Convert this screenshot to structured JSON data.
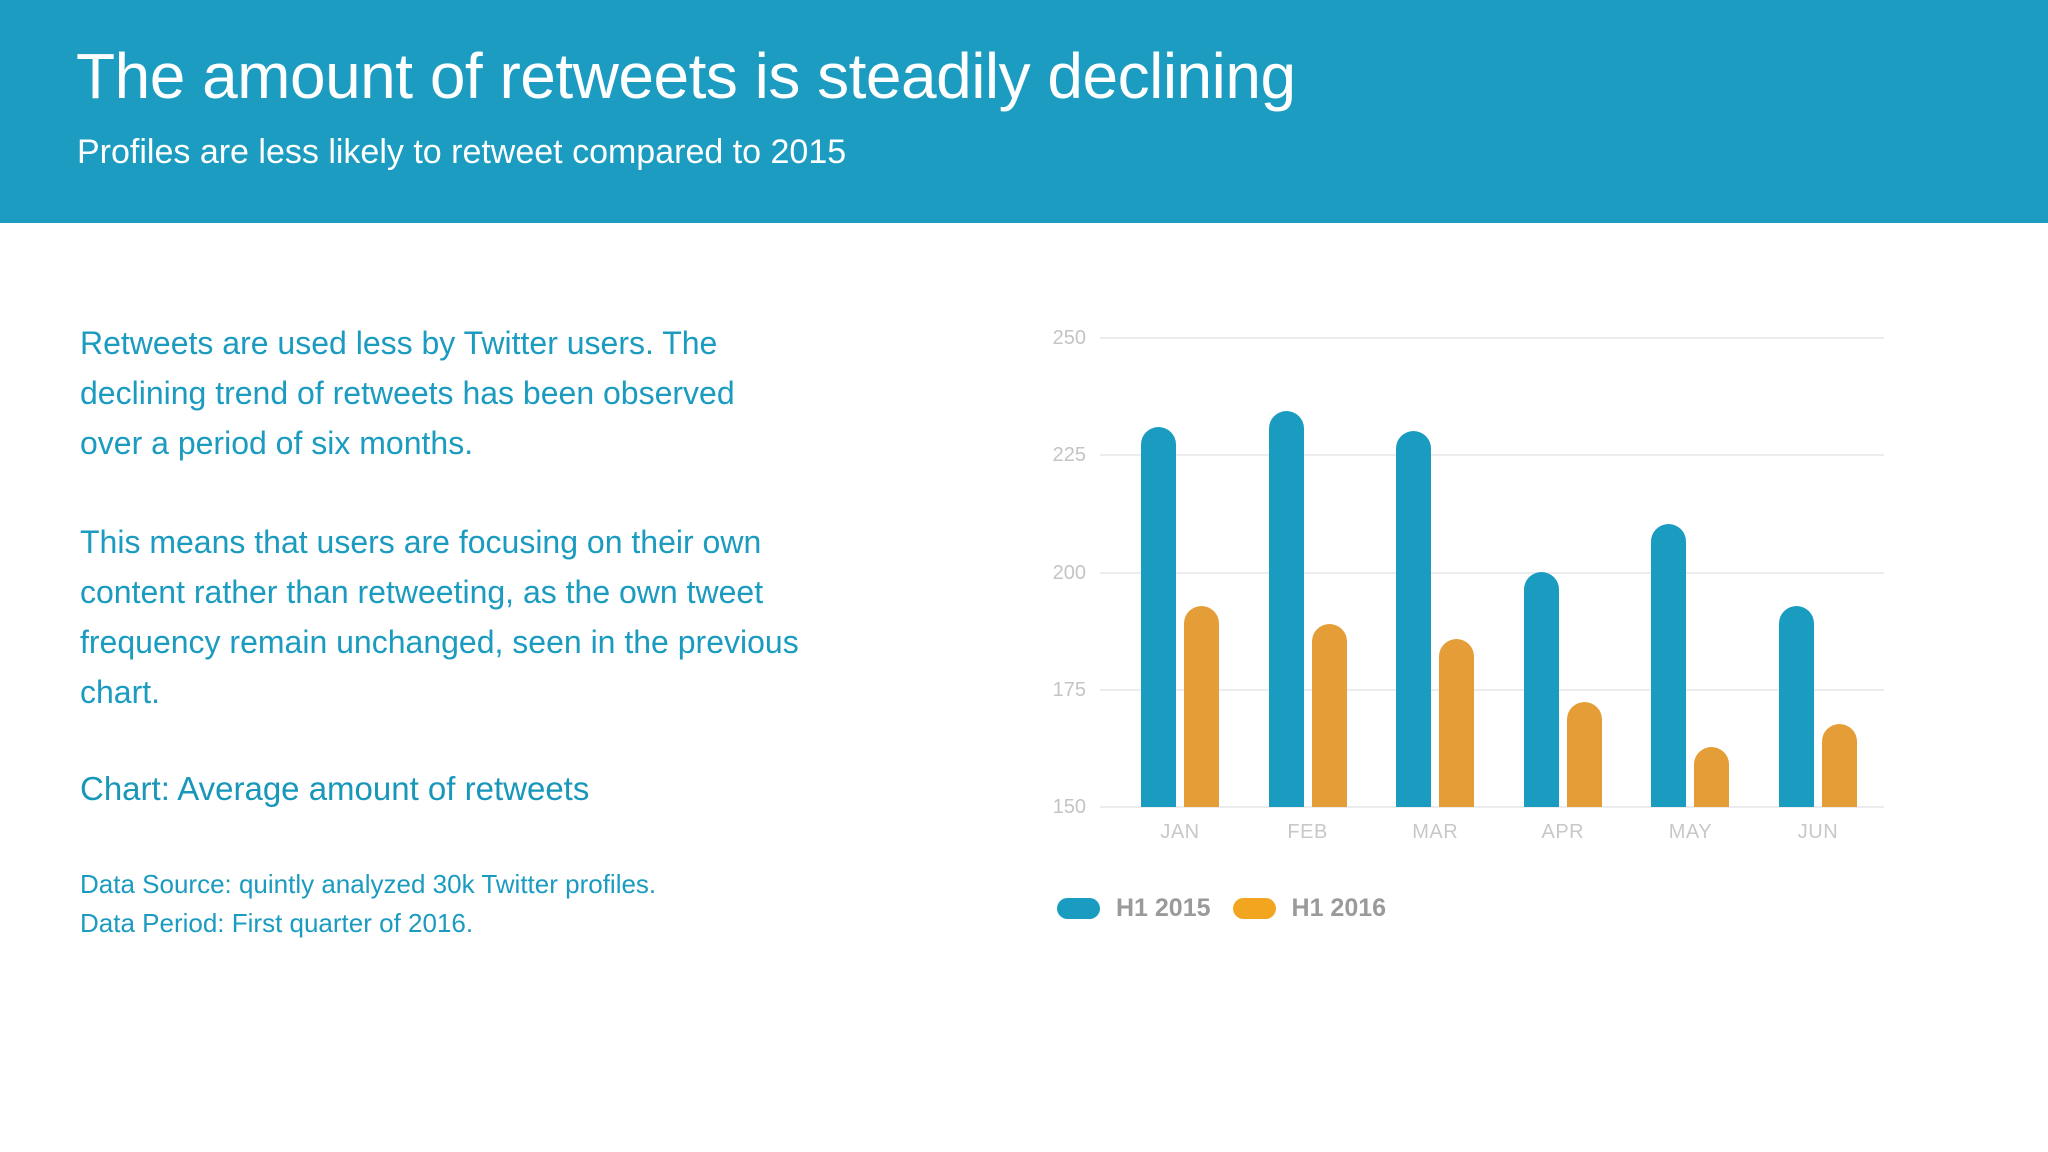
{
  "header": {
    "title": "The amount of retweets is steadily declining",
    "subtitle": "Profiles are less likely to retweet compared to 2015",
    "background_color": "#1B9CC0"
  },
  "body": {
    "paragraph1_lines": [
      "Retweets are used less by Twitter users. The",
      "declining trend of retweets has been observed",
      "over a period of six months."
    ],
    "paragraph2_lines": [
      "This means that users are focusing on their own",
      "content rather than retweeting, as the own tweet",
      "frequency remain unchanged, seen in the previous",
      "chart."
    ],
    "chart_heading": "Chart: Average amount of retweets",
    "data_source": "Data Source: quintly analyzed 30k Twitter profiles.",
    "data_period": "Data Period: First quarter of 2016."
  },
  "chart_data": {
    "type": "bar",
    "title": "Average amount of retweets",
    "xlabel": "",
    "ylabel": "",
    "categories": [
      "JAN",
      "FEB",
      "MAR",
      "APR",
      "MAY",
      "JUN"
    ],
    "series": [
      {
        "name": "H1 2015",
        "color": "#1A9CC1",
        "values": [
          231.0,
          234.4,
          230.2,
          200.1,
          210.3,
          192.9
        ]
      },
      {
        "name": "H1 2016",
        "color": "#E59D37",
        "values": [
          192.9,
          189.0,
          185.8,
          172.4,
          162.8,
          167.7
        ]
      }
    ],
    "yticks": [
      250,
      225,
      200,
      175,
      150
    ],
    "ylim": [
      150,
      250
    ],
    "grid": true,
    "legend_position": "bottom-left"
  },
  "legend": {
    "items": [
      {
        "label": "H1 2015",
        "color": "#1A9CC1"
      },
      {
        "label": "H1 2016",
        "color": "#F2A51F"
      }
    ]
  }
}
